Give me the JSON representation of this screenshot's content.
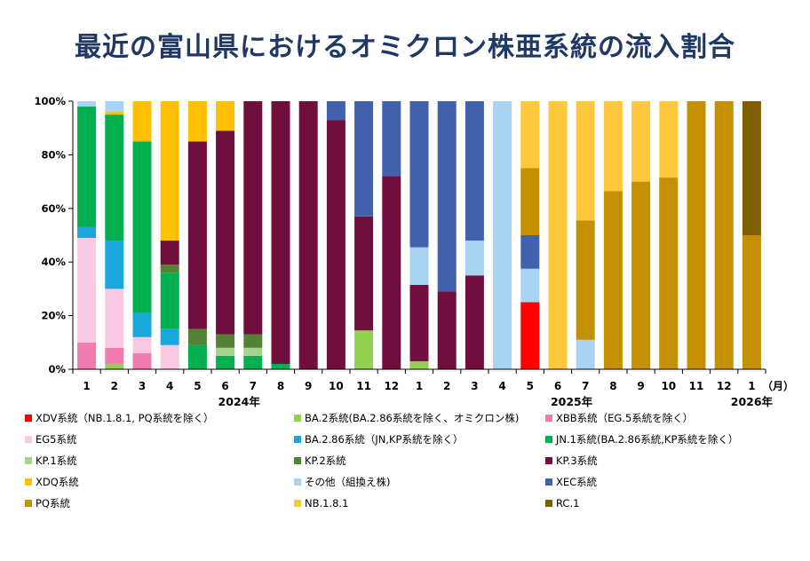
{
  "title": "最近の富山県におけるオミクロン株亜系統の流入割合",
  "chart_data": {
    "type": "bar",
    "stacked": true,
    "ylim": [
      0,
      100
    ],
    "yticks": [
      "0%",
      "20%",
      "40%",
      "60%",
      "80%",
      "100%"
    ],
    "unit_label": "（月）",
    "categories": [
      "1",
      "2",
      "3",
      "4",
      "5",
      "6",
      "7",
      "8",
      "9",
      "10",
      "11",
      "12",
      "1",
      "2",
      "3",
      "4",
      "5",
      "6",
      "7",
      "8",
      "9",
      "10",
      "11",
      "12",
      "1"
    ],
    "year_labels": [
      {
        "text": "2024年",
        "category_index": 5.5
      },
      {
        "text": "2025年",
        "category_index": 17.5
      },
      {
        "text": "2026年",
        "category_index": 24
      }
    ],
    "series": [
      {
        "name": "XDV系統（NB.1.8.1, PQ系統を除く）",
        "color": "#ff0000",
        "values": [
          0,
          0,
          0,
          0,
          0,
          0,
          0,
          0,
          0,
          0,
          0,
          0,
          0,
          0,
          0,
          0,
          25,
          0,
          0,
          0,
          0,
          0,
          0,
          0,
          0
        ]
      },
      {
        "name": "BA.2系統(BA.2.86系統を除く、オミクロン株)",
        "color": "#92d050",
        "values": [
          0,
          2,
          0,
          0,
          0,
          0,
          0,
          0,
          0,
          0,
          14.5,
          0,
          3,
          0,
          0,
          0,
          0,
          0,
          0,
          0,
          0,
          0,
          0,
          0,
          0
        ]
      },
      {
        "name": "XBB系統（EG.5系統を除く）",
        "color": "#f07cb0",
        "values": [
          10,
          6,
          6,
          0,
          0,
          0,
          0,
          0,
          0,
          0,
          0,
          0,
          0,
          0,
          0,
          0,
          0,
          0,
          0,
          0,
          0,
          0,
          0,
          0,
          0
        ]
      },
      {
        "name": "EG5系統",
        "color": "#f9c9e2",
        "values": [
          39,
          22,
          6,
          9,
          0,
          0,
          0,
          0,
          0,
          0,
          0,
          0,
          0,
          0,
          0,
          0,
          0,
          0,
          0,
          0,
          0,
          0,
          0,
          0,
          0
        ]
      },
      {
        "name": "BA.2.86系統（JN,KP系統を除く）",
        "color": "#1aa8dc",
        "values": [
          4,
          18,
          9,
          6,
          0,
          0,
          0,
          0,
          0,
          0,
          0,
          0,
          0,
          0,
          0,
          0,
          0,
          0,
          0,
          0,
          0,
          0,
          0,
          0,
          0
        ]
      },
      {
        "name": "JN.1系統(BA.2.86系統,KP系統を除く）",
        "color": "#00b050",
        "values": [
          45,
          47,
          64,
          21,
          9,
          5,
          5,
          2,
          0,
          0,
          0,
          0,
          0,
          0,
          0,
          0,
          0,
          0,
          0,
          0,
          0,
          0,
          0,
          0,
          0
        ]
      },
      {
        "name": "KP.1系統",
        "color": "#a9d18e",
        "values": [
          0,
          0,
          0,
          0,
          0,
          3,
          3,
          0,
          0,
          0,
          0,
          0,
          0,
          0,
          0,
          0,
          0,
          0,
          0,
          0,
          0,
          0,
          0,
          0,
          0
        ]
      },
      {
        "name": "KP.2系統",
        "color": "#548235",
        "values": [
          0,
          0,
          0,
          3,
          6,
          5,
          5,
          0,
          0,
          0,
          0,
          0,
          0,
          0,
          0,
          0,
          0,
          0,
          0,
          0,
          0,
          0,
          0,
          0,
          0
        ]
      },
      {
        "name": "KP.3系統",
        "color": "#700e3d",
        "values": [
          0,
          0,
          0,
          9,
          70,
          76,
          87,
          98,
          100,
          93,
          42.5,
          72,
          28.5,
          29,
          35,
          0,
          0,
          0,
          0,
          0,
          0,
          0,
          0,
          0,
          0
        ]
      },
      {
        "name": "XDQ系統",
        "color": "#ffc000",
        "values": [
          0,
          1,
          15,
          52,
          15,
          11,
          0,
          0,
          0,
          0,
          0,
          0,
          0,
          0,
          0,
          0,
          0,
          0,
          0,
          0,
          0,
          0,
          0,
          0,
          0
        ]
      },
      {
        "name": "その他（組換え株)",
        "color": "#a8d3f2",
        "values": [
          2,
          4,
          0,
          0,
          0,
          0,
          0,
          0,
          0,
          0,
          0,
          0,
          14,
          0,
          13,
          100,
          12.5,
          0,
          11,
          0,
          0,
          0,
          0,
          0,
          0
        ]
      },
      {
        "name": "XEC系統",
        "color": "#4161ad",
        "values": [
          0,
          0,
          0,
          0,
          0,
          0,
          0,
          0,
          0,
          7,
          43,
          28,
          54.5,
          71,
          52,
          0,
          12.5,
          0,
          0,
          0,
          0,
          0,
          0,
          0,
          0
        ]
      },
      {
        "name": "PQ系統",
        "color": "#c49000",
        "values": [
          0,
          0,
          0,
          0,
          0,
          0,
          0,
          0,
          0,
          0,
          0,
          0,
          0,
          0,
          0,
          0,
          25,
          0,
          44.5,
          66.5,
          70,
          71.5,
          100,
          100,
          50
        ]
      },
      {
        "name": "NB.1.8.1",
        "color": "#ffc83c",
        "values": [
          0,
          0,
          0,
          0,
          0,
          0,
          0,
          0,
          0,
          0,
          0,
          0,
          0,
          0,
          0,
          0,
          25,
          100,
          44.5,
          33.5,
          30,
          28.5,
          0,
          0,
          0
        ]
      },
      {
        "name": "RC.1",
        "color": "#7f6000",
        "values": [
          0,
          0,
          0,
          0,
          0,
          0,
          0,
          0,
          0,
          0,
          0,
          0,
          0,
          0,
          0,
          0,
          0,
          0,
          0,
          0,
          0,
          0,
          0,
          0,
          50
        ]
      }
    ],
    "legend_position": "bottom"
  }
}
